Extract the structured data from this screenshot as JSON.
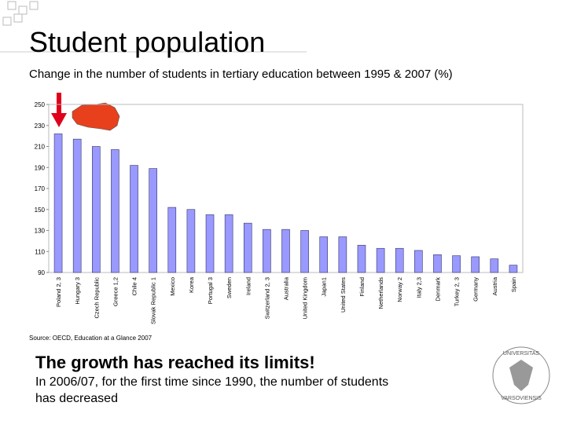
{
  "slide": {
    "title": "Student population",
    "heading": "The growth has reached its limits!",
    "body": [
      "In 2006/07, for the first time since 1990, the number of students",
      "has decreased"
    ],
    "logo": {
      "top": "UNIVERSITAS",
      "bottom": "VARSOVIENSIS"
    }
  },
  "chart_data": {
    "type": "bar",
    "title": "Change in the number of students in tertiary education between 1995 & 2007 (%)",
    "source": "Source: OECD, Education at a Glance 2007",
    "categories": [
      "Poland 2, 3",
      "Hungary 3",
      "Czech Republic",
      "Greece 1,2",
      "Chile 4",
      "Slovak Republic 1",
      "Mexico",
      "Korea",
      "Portugal 3",
      "Sweden",
      "Ireland",
      "Switzerland 2, 3",
      "Australia",
      "United Kingdom",
      "Japan1",
      "United States",
      "Finland",
      "Netherlands",
      "Norway 2",
      "Italy 2,3",
      "Denmark",
      "Turkey 2, 3",
      "Germany",
      "Austria",
      "Spain"
    ],
    "values": [
      222,
      217,
      210,
      207,
      192,
      189,
      152,
      150,
      145,
      145,
      137,
      131,
      131,
      130,
      124,
      124,
      116,
      113,
      113,
      111,
      107,
      106,
      105,
      103,
      97
    ],
    "color": "#9999ff",
    "ylim": [
      90,
      250
    ],
    "yticks": [
      90,
      110,
      130,
      150,
      170,
      190,
      210,
      230,
      250
    ],
    "grid": false
  }
}
